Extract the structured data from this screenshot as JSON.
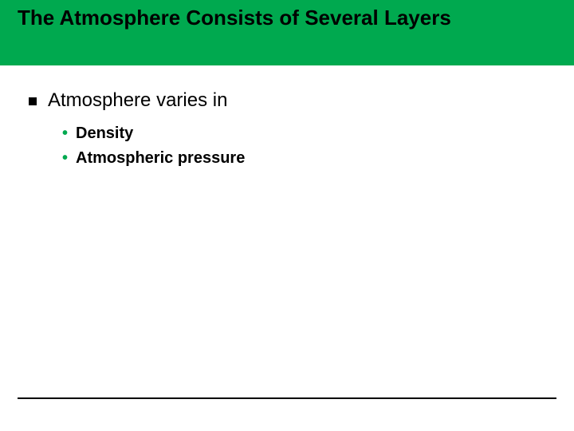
{
  "slide": {
    "title": "The Atmosphere Consists of Several Layers",
    "header_band_color": "#00a94f",
    "title_color": "#000000",
    "title_fontsize": 26,
    "title_fontweight": "bold",
    "background_color": "#ffffff",
    "footer_line_color": "#000000"
  },
  "content": {
    "level1": {
      "bullet_color": "#000000",
      "text_color": "#000000",
      "text_fontsize": 24,
      "items": [
        {
          "text": "Atmosphere varies in"
        }
      ]
    },
    "level2": {
      "bullet_color": "#00a94f",
      "bullet_char": "•",
      "text_color": "#000000",
      "text_fontsize": 20,
      "text_fontweight": "bold",
      "items": [
        {
          "text": "Density"
        },
        {
          "text": "Atmospheric pressure"
        }
      ]
    }
  }
}
